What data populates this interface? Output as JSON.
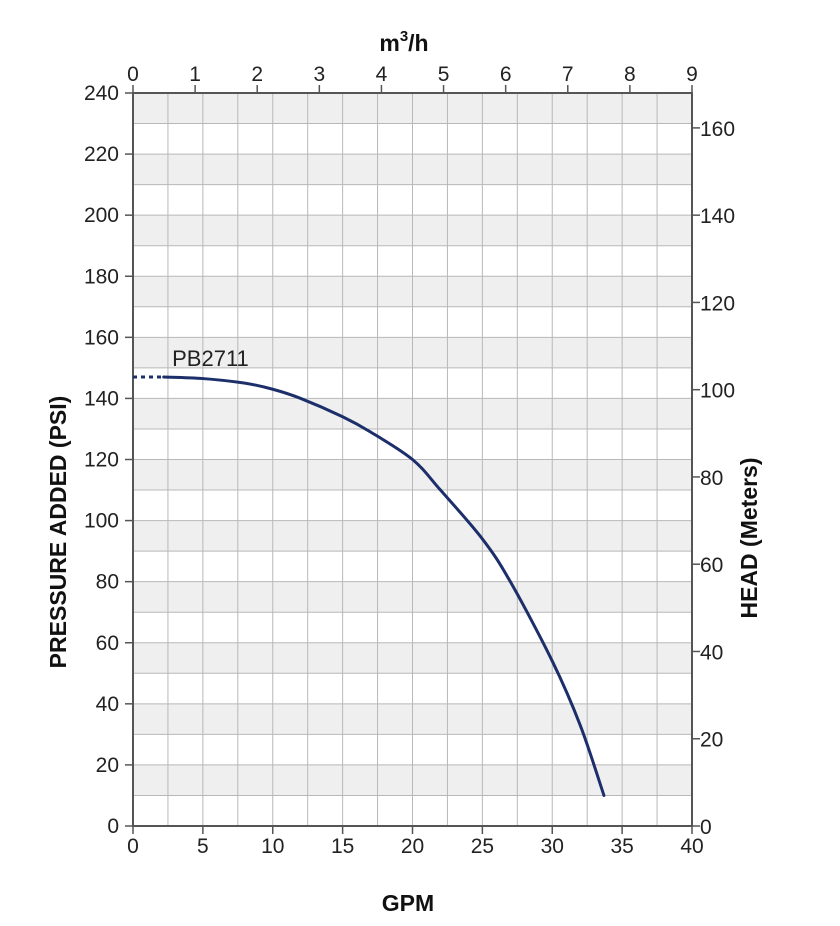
{
  "chart_data": {
    "type": "line",
    "title": "",
    "xlabel": "GPM",
    "ylabel": "PRESSURE ADDED (PSI)",
    "x2label": "m3/h",
    "y2label": "HEAD (Meters)",
    "xlim": [
      0,
      40
    ],
    "ylim": [
      0,
      240
    ],
    "x2lim": [
      0,
      9
    ],
    "y2lim": [
      0,
      168
    ],
    "x_ticks": [
      "0",
      "5",
      "10",
      "15",
      "20",
      "25",
      "30",
      "35",
      "40"
    ],
    "y_ticks": [
      "0",
      "20",
      "40",
      "60",
      "80",
      "100",
      "120",
      "140",
      "160",
      "180",
      "200",
      "220",
      "240"
    ],
    "x2_ticks": [
      "0",
      "1",
      "2",
      "3",
      "4",
      "5",
      "6",
      "7",
      "8",
      "9"
    ],
    "y2_ticks": [
      "0",
      "20",
      "40",
      "60",
      "80",
      "100",
      "120",
      "140",
      "160"
    ],
    "grid": true,
    "series": [
      {
        "name": "PB2711",
        "color": "#1d2f6b",
        "dashed_segment": {
          "x": [
            0,
            2.2
          ],
          "y": [
            147,
            147
          ]
        },
        "x": [
          2.2,
          5,
          8,
          10,
          12,
          15,
          17,
          20,
          22,
          25,
          27,
          30,
          32,
          33.7
        ],
        "y": [
          147,
          146.5,
          145,
          143,
          140,
          134,
          129,
          120,
          110,
          94,
          80,
          54,
          33,
          10
        ]
      }
    ]
  }
}
